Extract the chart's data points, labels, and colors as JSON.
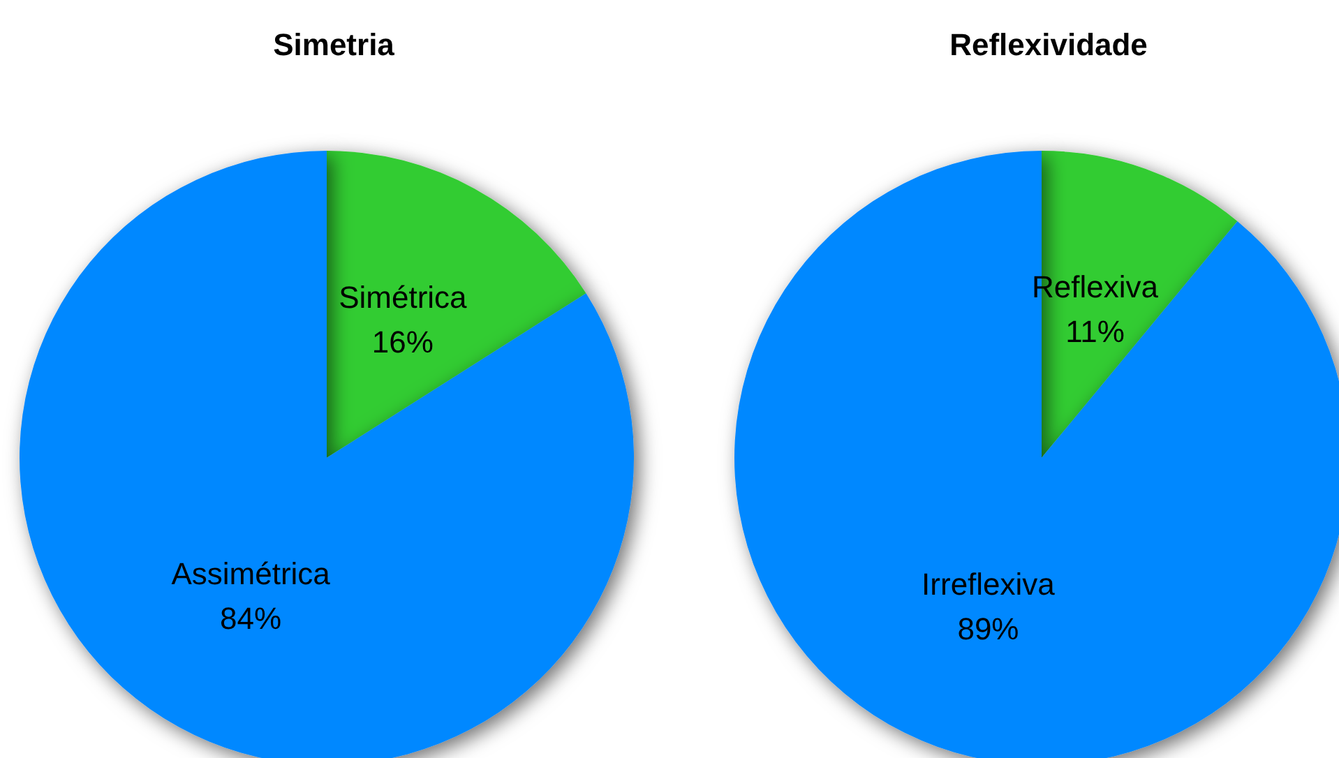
{
  "chart_data": [
    {
      "type": "pie",
      "title": "Simetria",
      "categories": [
        "Simétrica",
        "Assimétrica"
      ],
      "values": [
        16,
        84
      ],
      "value_labels": [
        "16%",
        "84%"
      ],
      "colors": [
        "#33cc33",
        "#0088ff"
      ],
      "legend": false
    },
    {
      "type": "pie",
      "title": "Reflexividade",
      "categories": [
        "Reflexiva",
        "Irreflexiva"
      ],
      "values": [
        11,
        89
      ],
      "value_labels": [
        "11%",
        "89%"
      ],
      "colors": [
        "#33cc33",
        "#0088ff"
      ],
      "legend": false
    }
  ]
}
